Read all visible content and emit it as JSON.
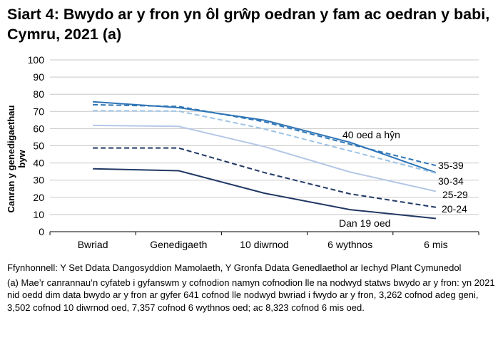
{
  "chart_data": {
    "type": "line",
    "title": "Siart 4: Bwydo ar y fron yn ôl grŵp oedran y fam ac oedran y babi, Cymru, 2021 (a)",
    "ylabel": "Canran y genedigaethau byw",
    "xlabel": "",
    "ylim": [
      0,
      100
    ],
    "yticks": [
      0,
      10,
      20,
      30,
      40,
      50,
      60,
      70,
      80,
      90,
      100
    ],
    "grid": true,
    "categories": [
      "Bwriad",
      "Genedigaeth",
      "10 diwrnod",
      "6 wythnos",
      "6 mis"
    ],
    "series": [
      {
        "name": "40 oed a hŷn",
        "values": [
          75.6,
          72.2,
          64.9,
          52,
          34.4
        ],
        "color": "#2e75b6",
        "dash": false
      },
      {
        "name": "35-39",
        "values": [
          73.9,
          72.9,
          64,
          50.9,
          38.5
        ],
        "color": "#2e75b6",
        "dash": true
      },
      {
        "name": "30-34",
        "values": [
          70.4,
          70.2,
          59.8,
          47,
          34.1
        ],
        "color": "#9dc3e6",
        "dash": true
      },
      {
        "name": "25-29",
        "values": [
          61.9,
          61.3,
          49.5,
          34.7,
          23.5
        ],
        "color": "#b4c7e7",
        "dash": false
      },
      {
        "name": "20-24",
        "values": [
          48.7,
          48.7,
          34.4,
          22,
          14.2
        ],
        "color": "#203864",
        "dash": true
      },
      {
        "name": "Dan 19 oed",
        "values": [
          36.6,
          35.5,
          22.4,
          12.8,
          7.7
        ],
        "color": "#203864",
        "dash": false
      }
    ]
  },
  "notes": {
    "source": "Ffynhonnell: Y Set Ddata Dangosyddion Mamolaeth, Y Gronfa Ddata Genedlaethol ar Iechyd Plant Cymunedol",
    "footnote": "(a) Mae’r canrannau’n cyfateb i gyfanswm y cofnodion namyn cofnodion lle na nodwyd statws bwydo ar y fron: yn 2021 nid oedd dim data bwydo ar y fron ar gyfer 641 cofnod lle nodwyd bwriad i fwydo ar y fron, 3,262 cofnod adeg geni, 3,502 cofnod 10 diwrnod oed, 7,357 cofnod 6 wythnos oed; ac 8,323 cofnod 6 mis oed."
  }
}
